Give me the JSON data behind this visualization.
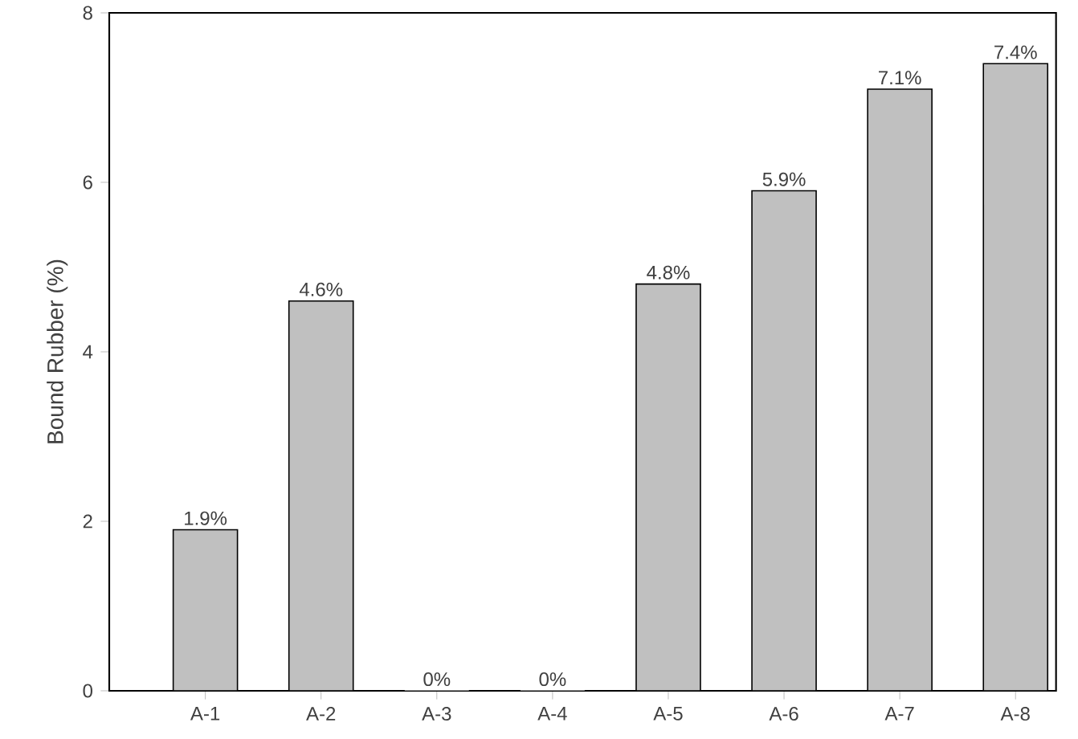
{
  "chart_data": {
    "type": "bar",
    "ylabel": "Bound Rubber (%)",
    "categories": [
      "A-1",
      "A-2",
      "A-3",
      "A-4",
      "A-5",
      "A-6",
      "A-7",
      "A-8"
    ],
    "values": [
      1.9,
      4.6,
      0,
      0,
      4.8,
      5.9,
      7.1,
      7.4
    ],
    "value_labels": [
      "1.9%",
      "4.6%",
      "0%",
      "0%",
      "4.8%",
      "5.9%",
      "7.1%",
      "7.4%"
    ],
    "color": "#c0c0c0",
    "ylim": [
      0,
      8
    ],
    "yticks": [
      0,
      2,
      4,
      6,
      8
    ],
    "grid": false
  }
}
